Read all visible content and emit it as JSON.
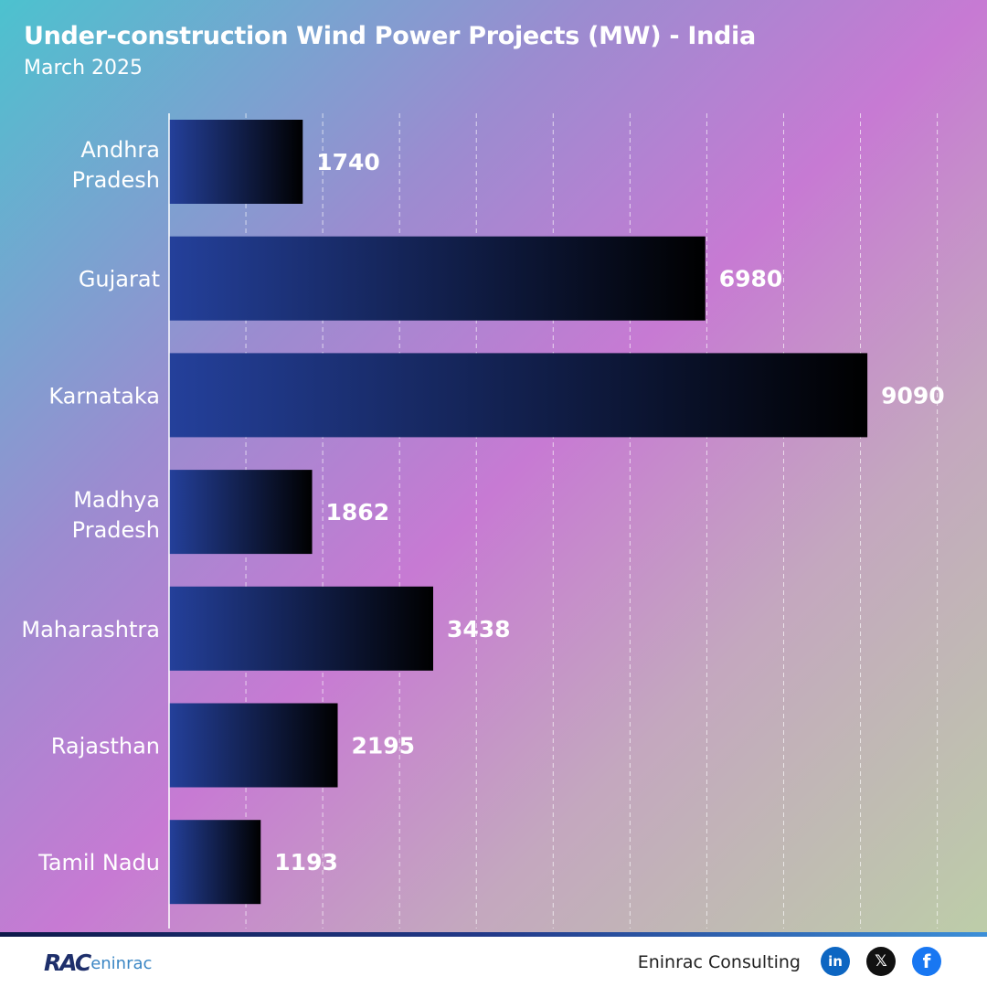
{
  "header": {
    "title": "Under-construction Wind Power Projects (MW) - India",
    "subtitle": "March 2025"
  },
  "chart_data": {
    "type": "bar",
    "orientation": "horizontal",
    "categories": [
      "Andhra Pradesh",
      "Gujarat",
      "Karnataka",
      "Madhya Pradesh",
      "Maharashtra",
      "Rajasthan",
      "Tamil Nadu"
    ],
    "values": [
      1740,
      6980,
      9090,
      1862,
      3438,
      2195,
      1193
    ],
    "xlim": [
      0,
      10000
    ],
    "grid": "vertical dashed",
    "xlabel": "",
    "ylabel": ""
  },
  "footer": {
    "logo_mark": "RAC",
    "logo_text": "eninrac",
    "brand": "Eninrac Consulting",
    "social": [
      {
        "name": "linkedin-icon",
        "glyph": "in"
      },
      {
        "name": "x-icon",
        "glyph": "𝕏"
      },
      {
        "name": "facebook-icon",
        "glyph": "f"
      }
    ]
  },
  "colors": {
    "bar_start": "#24409b",
    "bar_end": "#000000",
    "value_label": "#ffffff",
    "category_label": "#ffffff"
  }
}
